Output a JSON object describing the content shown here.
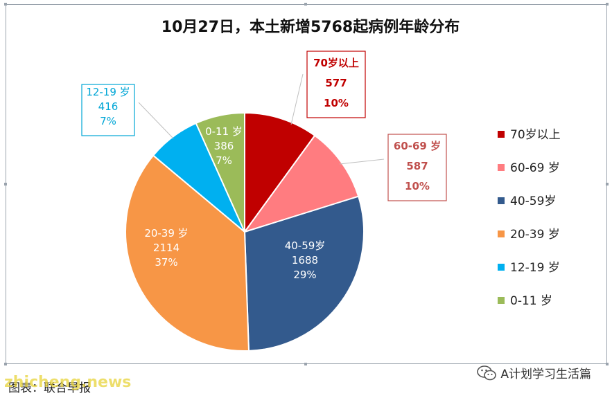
{
  "chart_data": {
    "type": "pie",
    "title": "10月27日，本土新增5768起病例年龄分布",
    "slices": [
      {
        "label": "70岁以上",
        "legend": "70岁以上",
        "value": 577,
        "percent": "10%",
        "color": "#c00000",
        "label_color": "#c00000"
      },
      {
        "label": "60-69 岁",
        "legend": "60-69 岁",
        "value": 587,
        "percent": "10%",
        "color": "#ff7c80",
        "label_color": "#c0504d"
      },
      {
        "label": "40-59岁",
        "legend": "40-59岁",
        "value": 1688,
        "percent": "29%",
        "color": "#335a8d",
        "label_color": "#ffffff"
      },
      {
        "label": "20-39 岁",
        "legend": "20-39 岁",
        "value": 2114,
        "percent": "37%",
        "color": "#f79646",
        "label_color": "#ffffff"
      },
      {
        "label": "12-19 岁",
        "legend": "12-19 岁",
        "value": 416,
        "percent": "7%",
        "color": "#00b0f0",
        "label_color": "#00a6d6"
      },
      {
        "label": "0-11 岁",
        "legend": "0-11 岁",
        "value": 386,
        "percent": "7%",
        "color": "#9bbb59",
        "label_color": "#ffffff"
      }
    ],
    "legend_position": "right"
  },
  "caption": "图表：联合早报",
  "watermark": "zhicheng.news",
  "brand": {
    "text": "A计划学习生活篇",
    "icon": "wechat-icon"
  }
}
